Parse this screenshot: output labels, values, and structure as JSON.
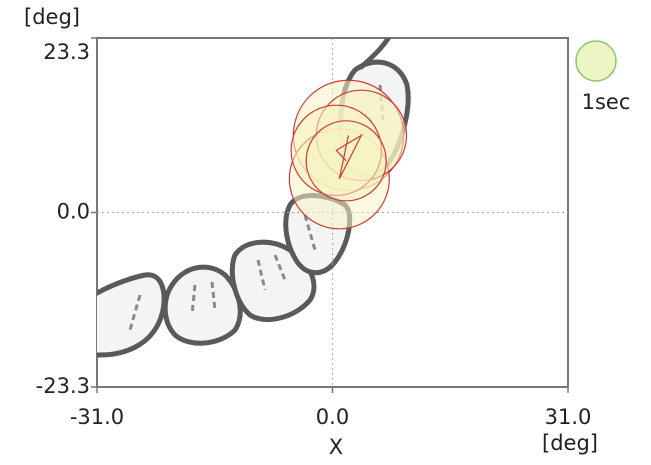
{
  "chart_data": {
    "type": "bubble",
    "y_axis_unit": "[deg]",
    "x_axis_label": "X",
    "x_axis_unit": "[deg]",
    "xlim": [
      -31.0,
      31.0
    ],
    "ylim": [
      -23.3,
      23.3
    ],
    "xticks": [
      {
        "value": -31.0,
        "label": "-31.0"
      },
      {
        "value": 0,
        "label": "0.0"
      },
      {
        "value": 31.0,
        "label": "31.0"
      }
    ],
    "yticks": [
      {
        "value": -23.3,
        "label": "-23.3"
      },
      {
        "value": 0,
        "label": "0.0"
      },
      {
        "value": 23.3,
        "label": "23.3"
      }
    ],
    "grid": "inner-ticks",
    "series": [
      {
        "color": "#d03a3a",
        "fill": "#f6f3c2",
        "x": [
          2.1,
          0.9,
          3.8,
          0.5,
          1.8
        ],
        "values": [
          10.3,
          4.5,
          10.3,
          8.3,
          6.9
        ],
        "sizes": [
          7.6,
          6.25,
          5.1,
          5.1,
          4.0
        ]
      }
    ],
    "size_legend": {
      "value": 1,
      "label": "1sec",
      "color": "#8cc66c",
      "fill": "#eef5c4"
    }
  }
}
